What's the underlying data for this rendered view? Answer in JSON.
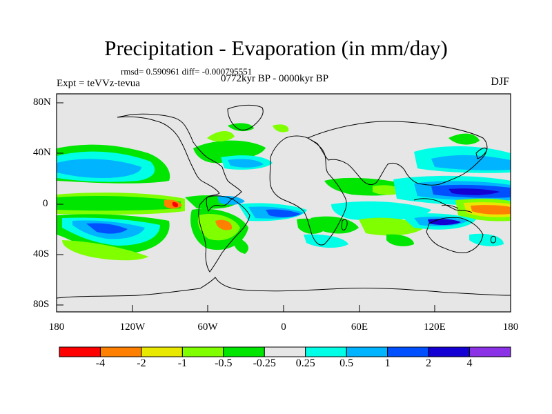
{
  "title": "Precipitation - Evaporation (in mm/day)",
  "stats_line": "rmsd= 0.590961 diff= -0.000795551",
  "expt_label": "Expt = teVVz-tevua",
  "period_label": "0772kyr BP - 0000kyr BP",
  "season_label": "DJF",
  "y_axis_ticks": [
    "80N",
    "40N",
    "0",
    "40S",
    "80S"
  ],
  "x_axis_ticks": [
    "180",
    "120W",
    "60W",
    "0",
    "60E",
    "120E",
    "180"
  ],
  "colorbar": {
    "colors": [
      "#ff0000",
      "#ff8000",
      "#e8e800",
      "#7fff00",
      "#00e600",
      "#e6e6e6",
      "#00ffe6",
      "#00b4ff",
      "#0050ff",
      "#1400d2",
      "#8c32e6"
    ],
    "labels": [
      "-4",
      "-2",
      "-1",
      "-0.5",
      "-0.25",
      "0.25",
      "0.5",
      "1",
      "2",
      "4"
    ]
  },
  "map_background_color": "#e6e6e6"
}
